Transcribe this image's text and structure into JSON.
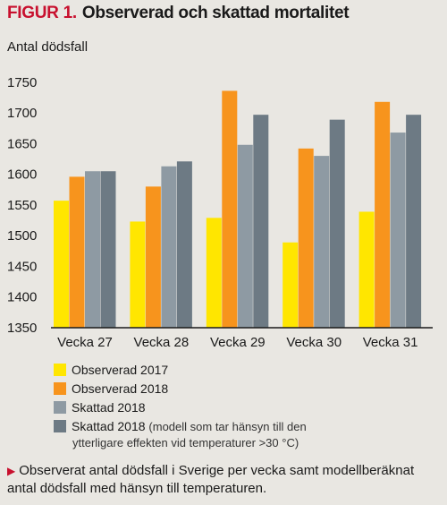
{
  "figure": {
    "tag": "FIGUR 1.",
    "title": "Observerad och skattad mortalitet",
    "ylabel": "Antal dödsfall",
    "caption_marker": "▶",
    "caption": "Observerat antal dödsfall i Sverige per vecka samt modellberäknat antal dödsfall med hänsyn till temperaturen."
  },
  "legend": [
    {
      "label": "Observerad 2017",
      "color": "#ffe600"
    },
    {
      "label": "Observerad 2018",
      "color": "#f7941d"
    },
    {
      "label": "Skattad 2018",
      "color": "#8e9aa3"
    },
    {
      "label": "Skattad 2018",
      "color": "#6d7a84",
      "note": "(modell som tar hänsyn till den",
      "note2": "ytterligare effekten vid temperaturer >30 °C)"
    }
  ],
  "chart_data": {
    "type": "bar",
    "categories": [
      "Vecka 27",
      "Vecka 28",
      "Vecka 29",
      "Vecka 30",
      "Vecka 31"
    ],
    "series": [
      {
        "name": "Observerad 2017",
        "color": "#ffe600",
        "values": [
          1557,
          1523,
          1529,
          1489,
          1539
        ]
      },
      {
        "name": "Observerad 2018",
        "color": "#f7941d",
        "values": [
          1596,
          1580,
          1736,
          1642,
          1718
        ]
      },
      {
        "name": "Skattad 2018",
        "color": "#8e9aa3",
        "values": [
          1605,
          1613,
          1648,
          1630,
          1668
        ]
      },
      {
        "name": "Skattad 2018",
        "color": "#6d7a84",
        "values": [
          1605,
          1621,
          1697,
          1689,
          1697
        ]
      }
    ],
    "ylim": [
      1350,
      1760
    ],
    "yticks": [
      "1350",
      "1400",
      "1450",
      "1500",
      "1550",
      "1600",
      "1650",
      "1700",
      "1750"
    ],
    "ylabel": "Antal dödsfall",
    "grid": false
  }
}
